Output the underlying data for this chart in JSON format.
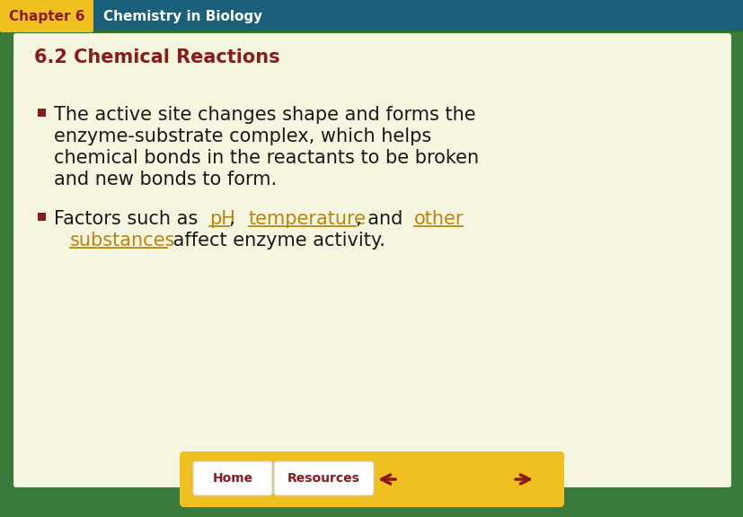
{
  "bg_outer": "#3a7a3a",
  "bg_header": "#1a607a",
  "header_tab_color": "#f0c020",
  "header_tab_text": "Chapter 6",
  "header_tab_text_color": "#8b1a1a",
  "header_title": "Chemistry in Biology",
  "header_title_color": "#ffffff",
  "slide_bg": "#f5f5e0",
  "slide_border_color": "#3a7a3a",
  "section_title": "6.2 Chemical Reactions",
  "section_title_color": "#8b1a1a",
  "bullet_color": "#8b1a1a",
  "bullet1_line1": "The active site changes shape and forms the",
  "bullet1_line2": "enzyme-substrate complex, which helps",
  "bullet1_line3": "chemical bonds in the reactants to be broken",
  "bullet1_line4": "and new bonds to form.",
  "body_text_color": "#1a1a1a",
  "link_color": "#b8860b",
  "footer_bar_color": "#f0c020",
  "footer_btn_text_color": "#8b1a1a",
  "footer_btn1": "Home",
  "footer_btn2": "Resources",
  "arrow_color": "#8b1a1a",
  "bullet_fs": 15,
  "section_fs": 15,
  "header_fs": 11,
  "footer_fs": 10
}
